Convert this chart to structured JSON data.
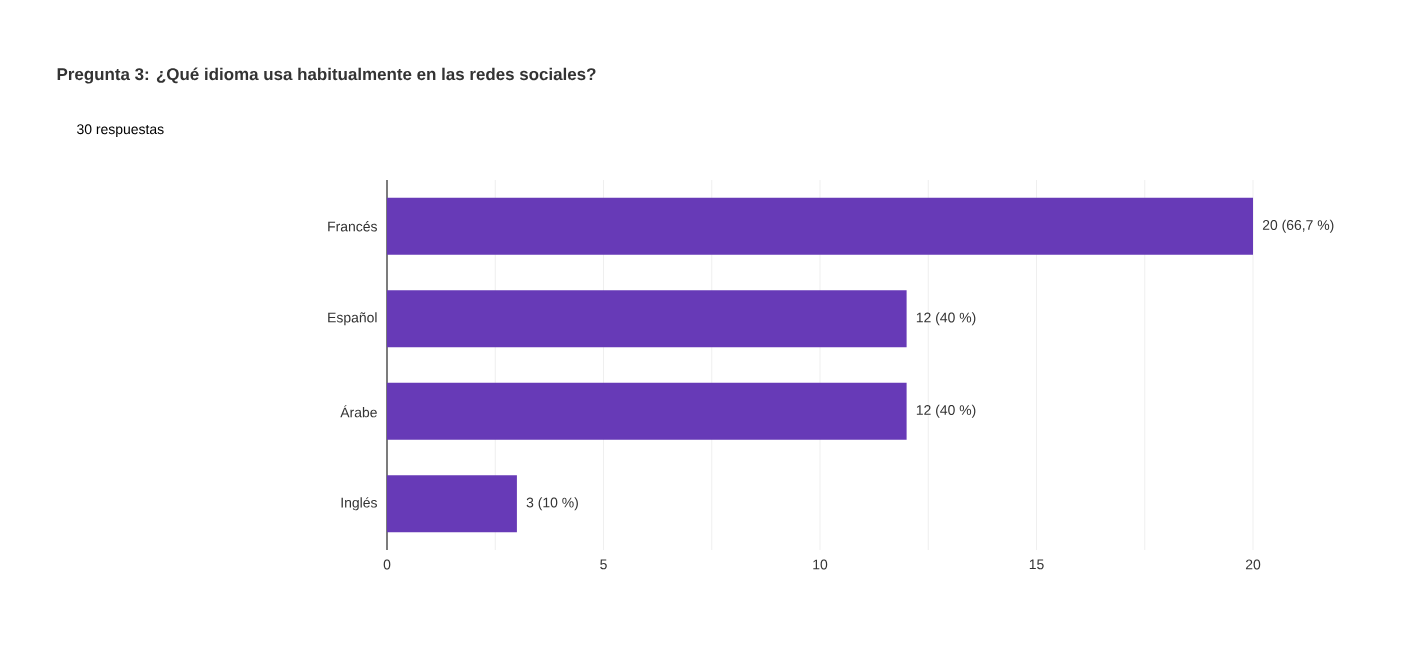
{
  "chart_data": {
    "type": "bar",
    "orientation": "horizontal",
    "title": "Pregunta 3:   ¿Qué idioma usa habitualmente en las redes sociales?",
    "subtitle": "30 respuestas",
    "categories": [
      "Francés",
      "Español",
      "Árabe",
      "Inglés"
    ],
    "values": [
      20,
      12,
      12,
      3
    ],
    "value_labels": [
      "20 (66,7 %)",
      "12 (40 %)",
      "12 (40 %)",
      "3 (10 %)"
    ],
    "color": "#673ab7",
    "xlim": [
      0,
      20
    ],
    "xticks": [
      0,
      5,
      10,
      15,
      20
    ],
    "grid": "x"
  }
}
